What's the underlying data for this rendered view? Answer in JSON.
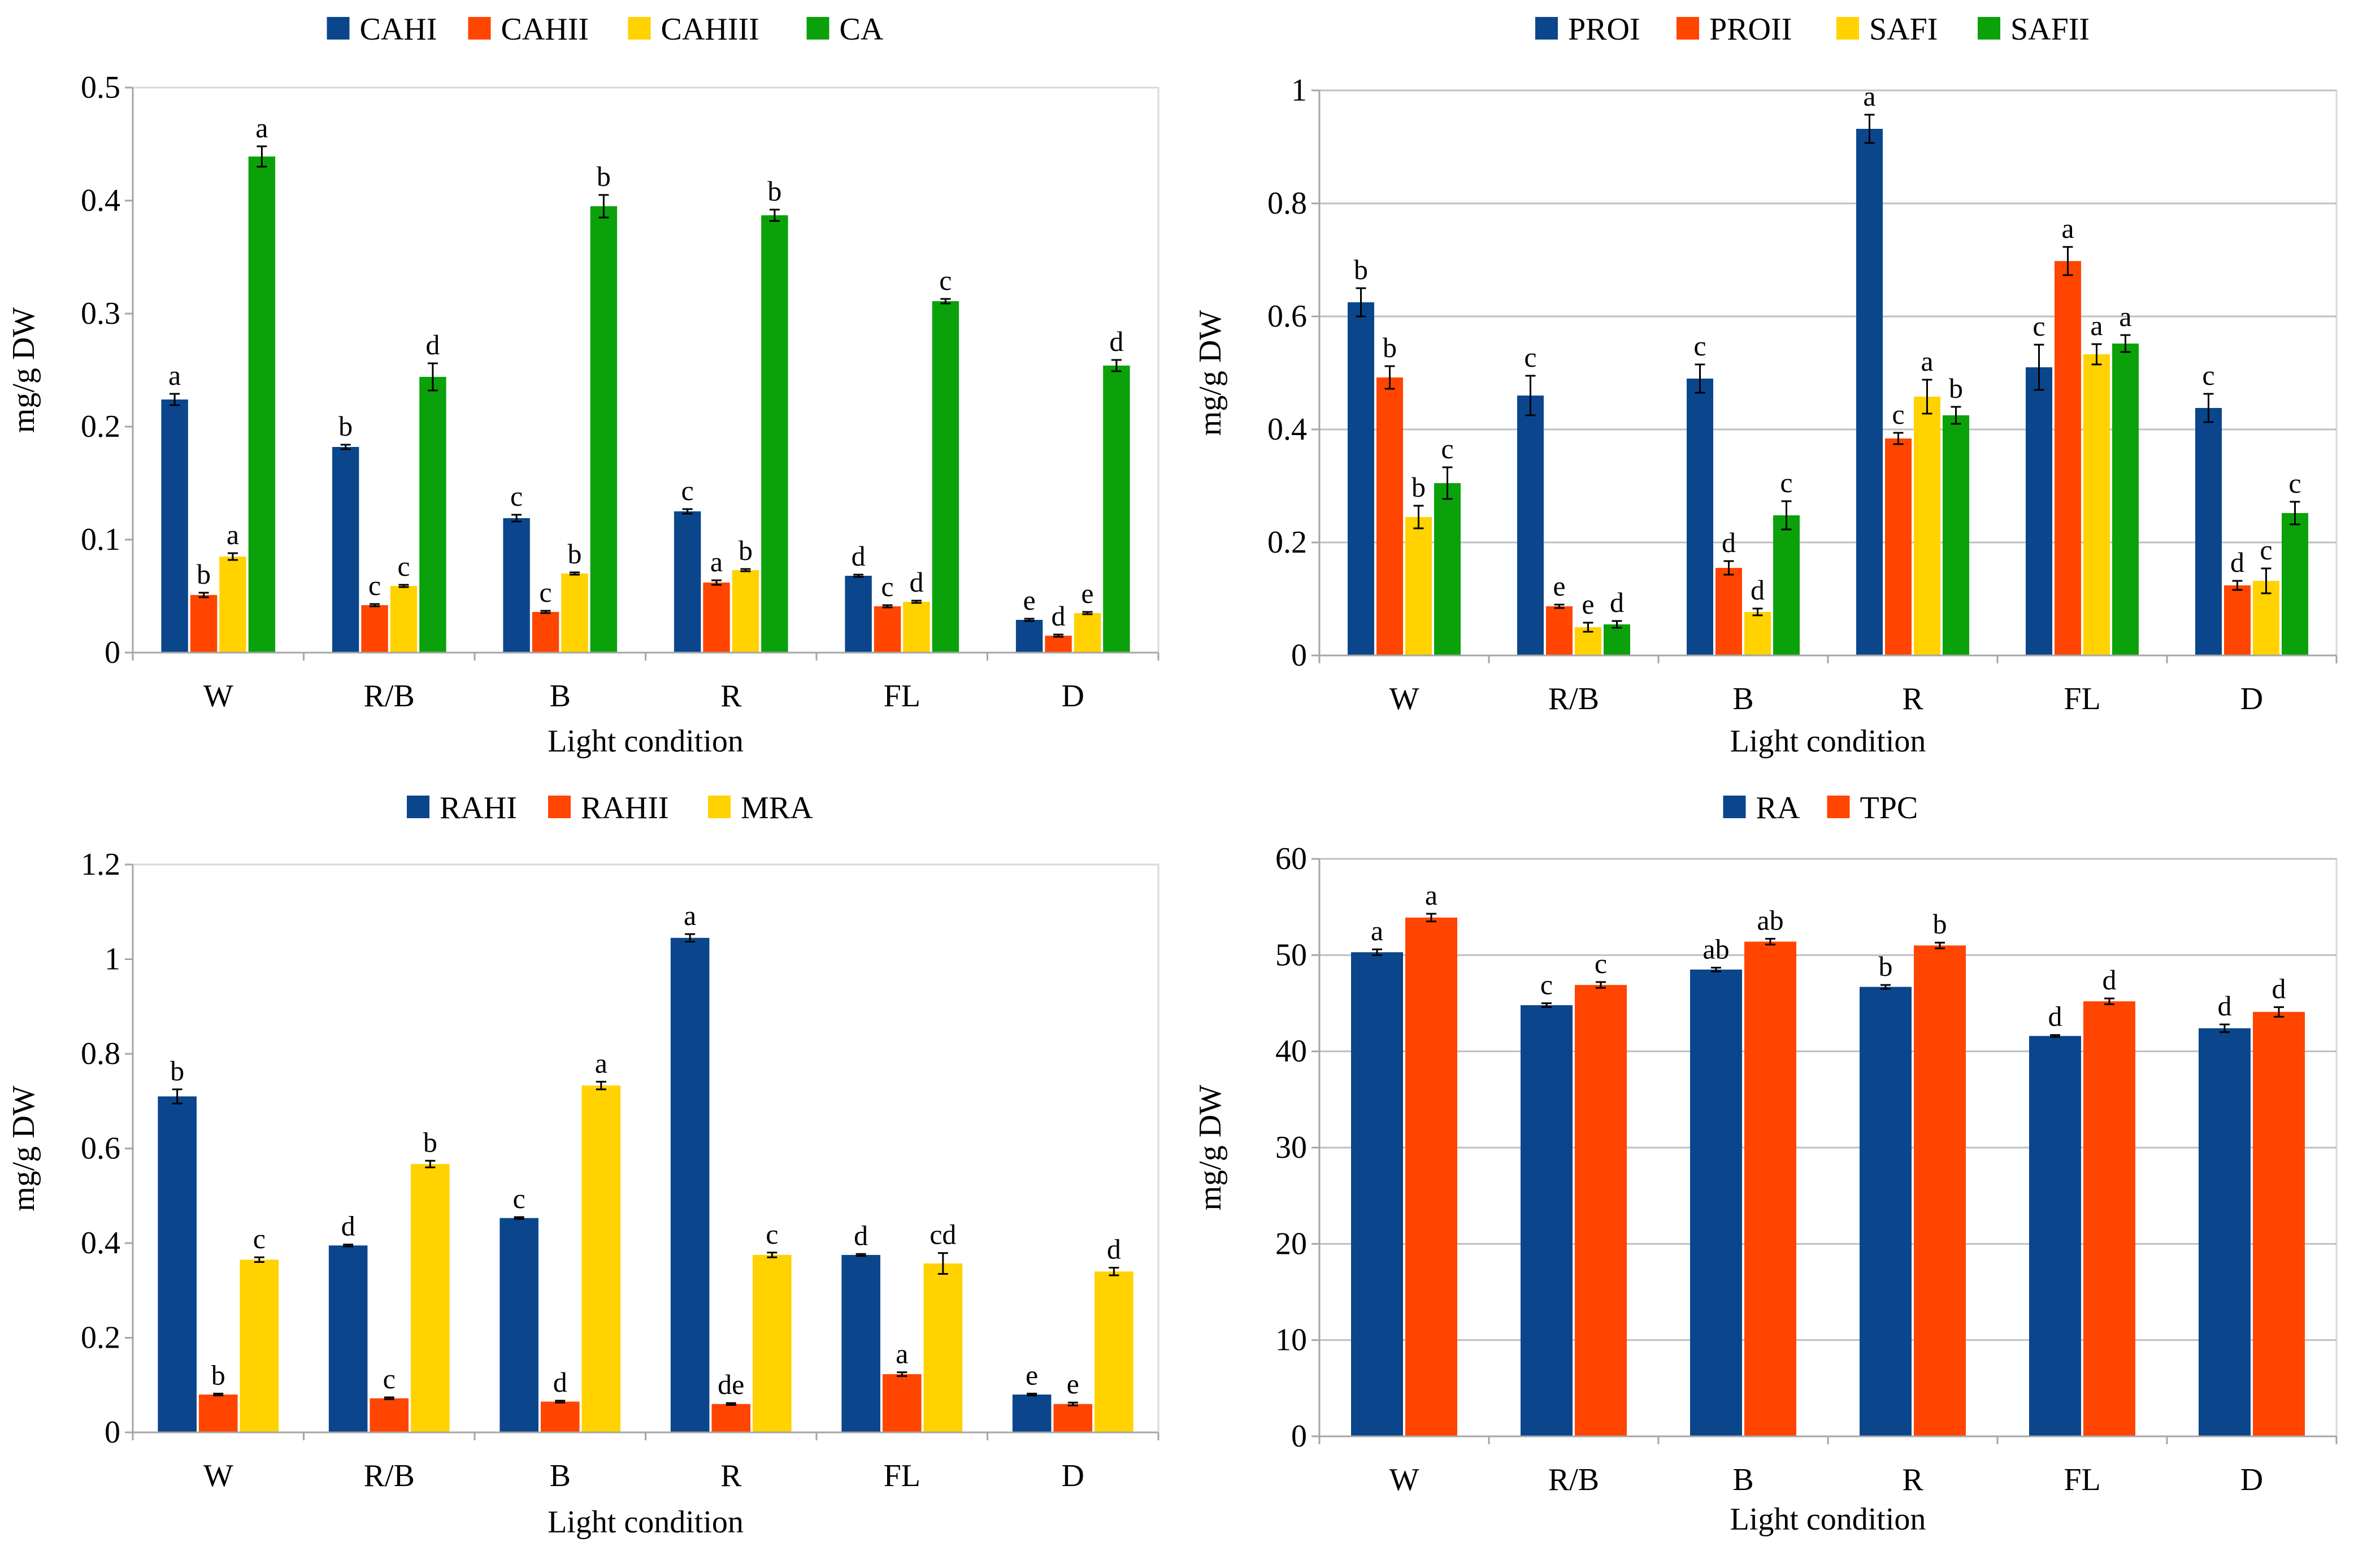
{
  "colors": {
    "blue": "#0B468C",
    "red": "#FF4500",
    "yellow": "#FFD200",
    "green": "#0BA10B",
    "grid": "#BFBFBF",
    "axis": "#A6A6A6"
  },
  "chart_data": [
    {
      "type": "bar",
      "title": "",
      "xlabel": "Light condition",
      "ylabel": "mg/g DW",
      "ylim": [
        0,
        0.5
      ],
      "yticks": [
        "0",
        "0.1",
        "0.2",
        "0.3",
        "0.4",
        "0.5"
      ],
      "grid": false,
      "legend_position": "top",
      "categories": [
        "W",
        "R/B",
        "B",
        "R",
        "FL",
        "D"
      ],
      "series": [
        {
          "name": "CAHI",
          "color": "#0B468C",
          "values": [
            0.224,
            0.182,
            0.119,
            0.125,
            0.068,
            0.029
          ],
          "errors": [
            0.005,
            0.002,
            0.003,
            0.002,
            0.001,
            0.001
          ],
          "letters": [
            "a",
            "b",
            "c",
            "c",
            "d",
            "e"
          ]
        },
        {
          "name": "CAHII",
          "color": "#FF4500",
          "values": [
            0.051,
            0.042,
            0.036,
            0.062,
            0.041,
            0.015
          ],
          "errors": [
            0.002,
            0.001,
            0.001,
            0.002,
            0.001,
            0.001
          ],
          "letters": [
            "b",
            "c",
            "c",
            "a",
            "c",
            "d"
          ]
        },
        {
          "name": "CAHIII",
          "color": "#FFD200",
          "values": [
            0.085,
            0.059,
            0.07,
            0.073,
            0.045,
            0.035
          ],
          "errors": [
            0.003,
            0.001,
            0.001,
            0.001,
            0.001,
            0.001
          ],
          "letters": [
            "a",
            "c",
            "b",
            "b",
            "d",
            "e"
          ]
        },
        {
          "name": "CA",
          "color": "#0BA10B",
          "values": [
            0.439,
            0.244,
            0.395,
            0.387,
            0.311,
            0.254
          ],
          "errors": [
            0.009,
            0.012,
            0.01,
            0.005,
            0.002,
            0.005
          ],
          "letters": [
            "a",
            "d",
            "b",
            "b",
            "c",
            "d"
          ]
        }
      ]
    },
    {
      "type": "bar",
      "title": "",
      "xlabel": "Light condition",
      "ylabel": "mg/g DW",
      "ylim": [
        0,
        1
      ],
      "yticks": [
        "0",
        "0.2",
        "0.4",
        "0.6",
        "0.8",
        "1"
      ],
      "grid": true,
      "legend_position": "top",
      "categories": [
        "W",
        "R/B",
        "B",
        "R",
        "FL",
        "D"
      ],
      "series": [
        {
          "name": "PROI",
          "color": "#0B468C",
          "values": [
            0.625,
            0.46,
            0.49,
            0.932,
            0.51,
            0.438
          ],
          "errors": [
            0.025,
            0.035,
            0.025,
            0.025,
            0.04,
            0.025
          ],
          "letters": [
            "b",
            "c",
            "c",
            "a",
            "c",
            "c"
          ]
        },
        {
          "name": "PROII",
          "color": "#FF4500",
          "values": [
            0.492,
            0.087,
            0.155,
            0.384,
            0.698,
            0.124
          ],
          "errors": [
            0.02,
            0.003,
            0.012,
            0.01,
            0.025,
            0.008
          ],
          "letters": [
            "b",
            "e",
            "d",
            "c",
            "a",
            "d"
          ]
        },
        {
          "name": "SAFI",
          "color": "#FFD200",
          "values": [
            0.245,
            0.05,
            0.077,
            0.458,
            0.533,
            0.132
          ],
          "errors": [
            0.02,
            0.008,
            0.006,
            0.03,
            0.018,
            0.022
          ],
          "letters": [
            "b",
            "e",
            "d",
            "a",
            "a",
            "c"
          ]
        },
        {
          "name": "SAFII",
          "color": "#0BA10B",
          "values": [
            0.305,
            0.055,
            0.248,
            0.425,
            0.552,
            0.252
          ],
          "errors": [
            0.028,
            0.006,
            0.025,
            0.015,
            0.015,
            0.02
          ],
          "letters": [
            "c",
            "d",
            "c",
            "b",
            "a",
            "c"
          ]
        }
      ]
    },
    {
      "type": "bar",
      "title": "",
      "xlabel": "Light condition",
      "ylabel": "mg/g DW",
      "ylim": [
        0,
        1.2
      ],
      "yticks": [
        "0",
        "0.2",
        "0.4",
        "0.6",
        "0.8",
        "1",
        "1.2"
      ],
      "grid": false,
      "legend_position": "top",
      "categories": [
        "W",
        "R/B",
        "B",
        "R",
        "FL",
        "D"
      ],
      "series": [
        {
          "name": "RAHI",
          "color": "#0B468C",
          "values": [
            0.71,
            0.395,
            0.453,
            1.045,
            0.375,
            0.08
          ],
          "errors": [
            0.015,
            0.002,
            0.002,
            0.008,
            0.002,
            0.002
          ],
          "letters": [
            "b",
            "d",
            "c",
            "a",
            "d",
            "e"
          ]
        },
        {
          "name": "RAHII",
          "color": "#FF4500",
          "values": [
            0.08,
            0.072,
            0.065,
            0.06,
            0.123,
            0.06
          ],
          "errors": [
            0.002,
            0.002,
            0.002,
            0.002,
            0.004,
            0.003
          ],
          "letters": [
            "b",
            "c",
            "d",
            "de",
            "a",
            "e"
          ]
        },
        {
          "name": "MRA",
          "color": "#FFD200",
          "values": [
            0.365,
            0.567,
            0.733,
            0.375,
            0.357,
            0.34
          ],
          "errors": [
            0.005,
            0.007,
            0.008,
            0.005,
            0.022,
            0.008
          ],
          "letters": [
            "c",
            "b",
            "a",
            "c",
            "cd",
            "d"
          ]
        }
      ]
    },
    {
      "type": "bar",
      "title": "",
      "xlabel": "Light condition",
      "ylabel": "mg/g DW",
      "ylim": [
        0,
        60
      ],
      "yticks": [
        "0",
        "10",
        "20",
        "30",
        "40",
        "50",
        "60"
      ],
      "grid": true,
      "legend_position": "top",
      "categories": [
        "W",
        "R/B",
        "B",
        "R",
        "FL",
        "D"
      ],
      "series": [
        {
          "name": "RA",
          "color": "#0B468C",
          "values": [
            50.3,
            44.8,
            48.5,
            46.7,
            41.6,
            42.4
          ],
          "errors": [
            0.3,
            0.2,
            0.2,
            0.2,
            0.1,
            0.4
          ],
          "letters": [
            "a",
            "c",
            "ab",
            "b",
            "d",
            "d"
          ]
        },
        {
          "name": "TPC",
          "color": "#FF4500",
          "values": [
            53.9,
            46.9,
            51.4,
            51.0,
            45.2,
            44.1
          ],
          "errors": [
            0.4,
            0.3,
            0.3,
            0.3,
            0.3,
            0.5
          ],
          "letters": [
            "a",
            "c",
            "ab",
            "b",
            "d",
            "d"
          ]
        }
      ]
    }
  ]
}
